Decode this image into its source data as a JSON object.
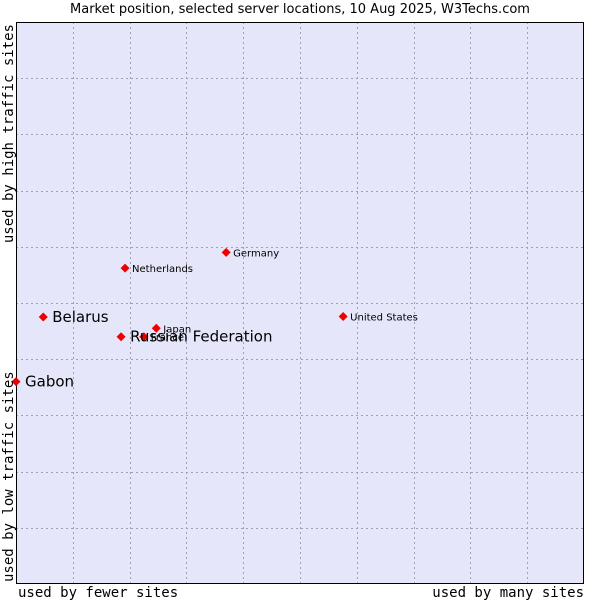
{
  "title": "Market position, selected server locations, 10 Aug 2025, W3Techs.com",
  "chart_data": {
    "type": "scatter",
    "title": "Market position, selected server locations, 10 Aug 2025, W3Techs.com",
    "xlabel_left": "used by fewer sites",
    "xlabel_right": "used by many sites",
    "ylabel_bottom": "used by low traffic sites",
    "ylabel_top": "used by high traffic sites",
    "xlim": [
      0,
      10
    ],
    "ylim": [
      0,
      10
    ],
    "grid": true,
    "colors": {
      "plot_bg": "#e6e6fa",
      "grid": "#a0a0b4",
      "point": "#ee0000",
      "frame": "#000000"
    },
    "points": [
      {
        "name": "Gabon",
        "x": 0.0,
        "y": 3.6,
        "size": "large"
      },
      {
        "name": "Belarus",
        "x": 0.48,
        "y": 4.75,
        "size": "large"
      },
      {
        "name": "Russian Federation",
        "x": 1.85,
        "y": 4.4,
        "size": "large"
      },
      {
        "name": "Netherlands",
        "x": 1.92,
        "y": 5.62,
        "size": "small"
      },
      {
        "name": "Germany",
        "x": 3.7,
        "y": 5.9,
        "size": "small"
      },
      {
        "name": "United States",
        "x": 5.76,
        "y": 4.76,
        "size": "small"
      },
      {
        "name": "Japan",
        "x": 2.47,
        "y": 4.55,
        "size": "small"
      },
      {
        "name": "France",
        "x": 2.25,
        "y": 4.4,
        "size": "small"
      }
    ]
  }
}
